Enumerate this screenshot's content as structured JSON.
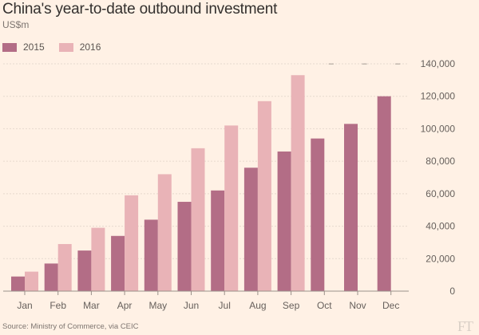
{
  "chart_data": {
    "type": "bar",
    "title": "China's year-to-date outbound investment",
    "subtitle": "US$m",
    "categories": [
      "Jan",
      "Feb",
      "Mar",
      "Apr",
      "May",
      "Jun",
      "Jul",
      "Aug",
      "Sep",
      "Oct",
      "Nov",
      "Dec"
    ],
    "series": [
      {
        "name": "2015",
        "color": "#b36d86",
        "values": [
          9000,
          17000,
          25000,
          34000,
          44000,
          55000,
          62000,
          76000,
          86000,
          94000,
          103000,
          120000
        ]
      },
      {
        "name": "2016",
        "color": "#e9b3b7",
        "values": [
          12000,
          29000,
          39000,
          59000,
          72000,
          88000,
          102000,
          117000,
          133000,
          null,
          null,
          null
        ]
      }
    ],
    "no_data_marker": "–",
    "yticks": [
      0,
      20000,
      40000,
      60000,
      80000,
      100000,
      120000,
      140000
    ],
    "ytick_labels": [
      "0",
      "20,000",
      "40,000",
      "60,000",
      "80,000",
      "100,000",
      "120,000",
      "140,000"
    ],
    "ylim": [
      0,
      140000
    ],
    "y_axis_side": "right",
    "grid": true,
    "legend": "top-left"
  },
  "footer": {
    "source": "Source: Ministry of Commerce, via CEIC",
    "logo": "FT"
  },
  "colors": {
    "background": "#fff1e5",
    "gridline": "#e6d9ce",
    "axis": "#9a918a"
  }
}
